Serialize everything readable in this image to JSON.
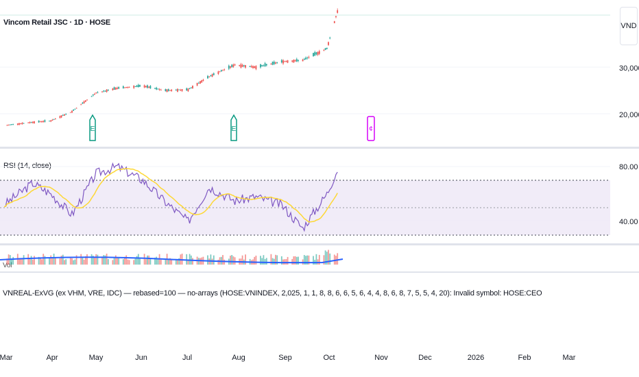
{
  "header": {
    "symbol_title": "Vincom Retail JSC · 1D · HOSE",
    "currency": "VND"
  },
  "rsi_label": "RSI (14, close)",
  "volume_label": "Vol",
  "error_message": "VNREAL-ExVG (ex VHM, VRE, IDC) — rebased=100 — no-arrays (HOSE:VNINDEX, 2,025, 1, 1, 8, 8, 6, 6, 5, 6, 4, 4, 8, 6, 8, 7, 5, 5, 4, 20): Invalid symbol: HOSE:CEO",
  "markers": [
    {
      "label": "E",
      "kind": "earnings"
    },
    {
      "label": "E",
      "kind": "earnings"
    },
    {
      "label": "¢",
      "kind": "dividend"
    }
  ],
  "colors": {
    "up": "#26a69a",
    "down": "#ef5350",
    "rsi_line": "#7e57c2",
    "rsi_ma": "#fdd835",
    "rsi_band": "#ede7f6",
    "volume_ma": "#2962ff",
    "earnings": "#089981",
    "dividend": "#d500f9"
  },
  "chart_data": [
    {
      "type": "candlestick",
      "title": "Vincom Retail JSC · 1D · HOSE",
      "y_ticks": [
        "30,000",
        "20,000"
      ],
      "x_ticks": [
        "Mar",
        "Apr",
        "May",
        "Jun",
        "Jul",
        "Aug",
        "Sep",
        "Oct",
        "Nov",
        "Dec",
        "2026",
        "Feb",
        "Mar"
      ],
      "dates": [
        "2025-03-01",
        "2025-03-20",
        "2025-04-01",
        "2025-04-15",
        "2025-05-01",
        "2025-05-15",
        "2025-06-01",
        "2025-06-15",
        "2025-07-01",
        "2025-07-15",
        "2025-08-01",
        "2025-08-15",
        "2025-09-01",
        "2025-09-15",
        "2025-10-01",
        "2025-10-08"
      ],
      "close": [
        17500,
        18200,
        18500,
        20500,
        24500,
        25500,
        26000,
        25000,
        25200,
        28000,
        30500,
        30000,
        31200,
        31500,
        34000,
        42000
      ]
    },
    {
      "type": "line",
      "title": "RSI (14, close)",
      "y_ticks": [
        "80.00",
        "40.00"
      ],
      "levels": [
        70,
        50,
        30
      ],
      "series": [
        {
          "values": [
            52,
            68,
            60,
            45,
            75,
            80,
            70,
            55,
            40,
            65,
            55,
            58,
            52,
            35,
            60,
            78
          ]
        }
      ]
    },
    {
      "type": "bar",
      "title": "Vol"
    }
  ]
}
